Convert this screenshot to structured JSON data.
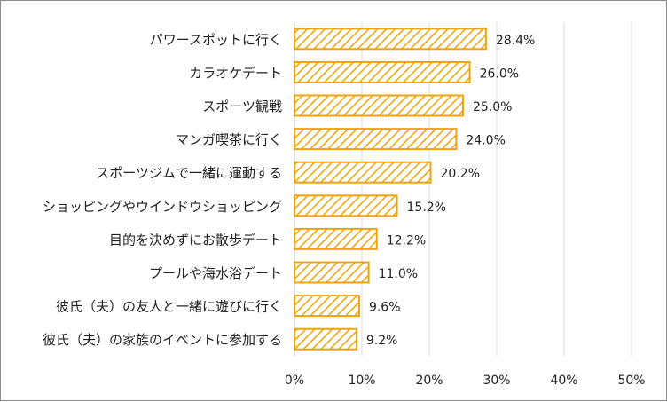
{
  "chart_data": {
    "type": "bar",
    "orientation": "horizontal",
    "title": "",
    "xlabel": "",
    "ylabel": "",
    "categories": [
      "パワースポットに行く",
      "カラオケデート",
      "スポーツ観戦",
      "マンガ喫茶に行く",
      "スポーツジムで一緒に運動する",
      "ショッピングやウインドウショッピング",
      "目的を決めずにお散歩デート",
      "プールや海水浴デート",
      "彼氏（夫）の友人と一緒に遊びに行く",
      "彼氏（夫）の家族のイベントに参加する"
    ],
    "values": [
      28.4,
      26.0,
      25.0,
      24.0,
      20.2,
      15.2,
      12.2,
      11.0,
      9.6,
      9.2
    ],
    "value_labels": [
      "28.4%",
      "26.0%",
      "25.0%",
      "24.0%",
      "20.2%",
      "15.2%",
      "12.2%",
      "11.0%",
      "9.6%",
      "9.2%"
    ],
    "xlim": [
      0,
      50
    ],
    "x_ticks": [
      0,
      10,
      20,
      30,
      40,
      50
    ],
    "x_tick_labels": [
      "0%",
      "10%",
      "20%",
      "30%",
      "40%",
      "50%"
    ],
    "grid": true,
    "legend": "none",
    "bar_style": "hatched",
    "bar_color": "#f0a30a",
    "grid_color": "#d9d9d9"
  }
}
